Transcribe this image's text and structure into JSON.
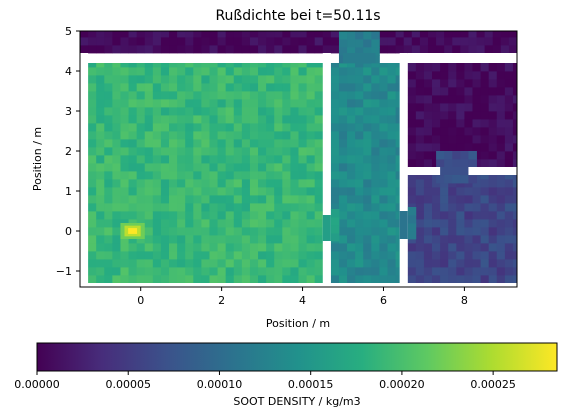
{
  "chart_data": {
    "type": "heatmap",
    "title": "Rußdichte bei t=50.11s",
    "xlabel": "Position / m",
    "ylabel": "Position / m",
    "xlim": [
      -1.5,
      9.3
    ],
    "ylim": [
      -1.4,
      5.0
    ],
    "xticks": [
      0,
      2,
      4,
      6,
      8
    ],
    "yticks": [
      -1,
      0,
      1,
      2,
      3,
      4,
      5
    ],
    "colormap": "viridis",
    "colorbar": {
      "label": "SOOT DENSITY / kg/m3",
      "range": [
        0,
        0.000285
      ],
      "ticks": [
        "0.00000",
        "0.00005",
        "0.00010",
        "0.00015",
        "0.00020",
        "0.00025"
      ],
      "tick_values": [
        0,
        5e-05,
        0.0001,
        0.00015,
        0.0002,
        0.00025
      ],
      "orientation": "horizontal",
      "placement": "bottom"
    },
    "regions": [
      {
        "name": "top strip",
        "x": [
          -1.5,
          9.3
        ],
        "y": [
          4.45,
          5.0
        ],
        "value": 5e-06
      },
      {
        "name": "left room",
        "x": [
          -1.3,
          4.5
        ],
        "y": [
          -1.3,
          4.2
        ],
        "value": 0.00019
      },
      {
        "name": "corridor",
        "x": [
          4.7,
          6.4
        ],
        "y": [
          -1.3,
          4.2
        ],
        "value": 0.000135
      },
      {
        "name": "upper right room",
        "x": [
          6.6,
          9.3
        ],
        "y": [
          1.6,
          4.2
        ],
        "value": 5e-06
      },
      {
        "name": "lower right room",
        "x": [
          6.6,
          9.3
        ],
        "y": [
          -1.3,
          1.4
        ],
        "value": 6e-05
      }
    ],
    "hotspot": {
      "x": -0.2,
      "y": 0.0,
      "value": 0.000285
    }
  }
}
